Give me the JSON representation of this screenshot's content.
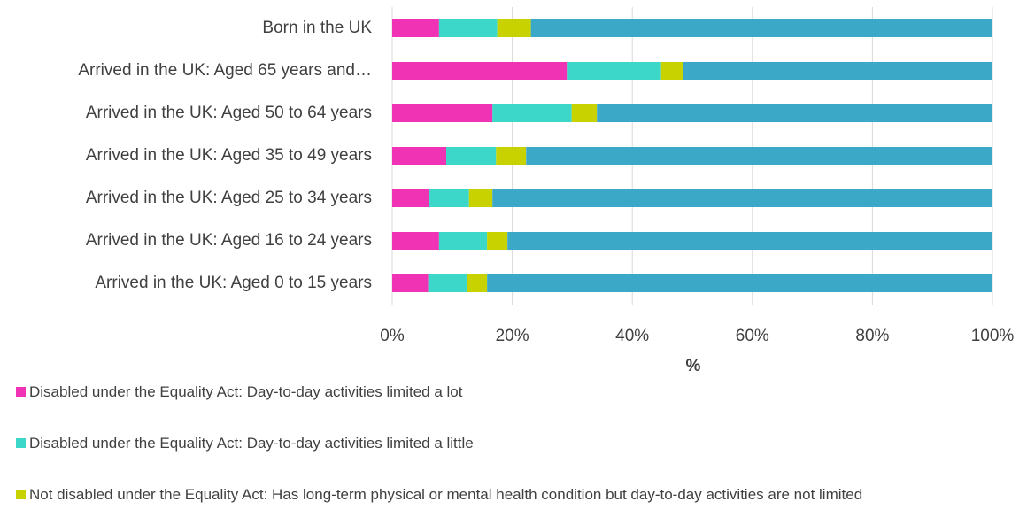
{
  "chart_data": {
    "type": "stacked_barh",
    "categories": [
      "Born in the UK",
      "Arrived in the UK: Aged 65 years and…",
      "Arrived in the UK: Aged 50 to 64 years",
      "Arrived in the UK: Aged 35 to 49 years",
      "Arrived in the UK: Aged 25 to 34 years",
      "Arrived in the UK: Aged 16 to 24 years",
      "Arrived in the UK: Aged 0 to 15 years"
    ],
    "series": [
      {
        "name": "Disabled under the Equality Act: Day-to-day activities limited a lot",
        "color": "#f032b4",
        "values": [
          7.8,
          29.1,
          16.7,
          9.0,
          6.2,
          7.8,
          6.0
        ]
      },
      {
        "name": "Disabled under the Equality Act: Day-to-day activities limited a little",
        "color": "#3cd7c8",
        "values": [
          9.7,
          15.7,
          13.2,
          8.3,
          6.6,
          8.0,
          6.4
        ]
      },
      {
        "name": "Not disabled under the Equality Act: Has long-term physical or mental health condition but day-to-day activities are not limited",
        "color": "#c8d200",
        "values": [
          5.6,
          3.6,
          4.2,
          5.0,
          3.9,
          3.4,
          3.4
        ]
      },
      {
        "name": null,
        "color": "#3ca8c8",
        "values": [
          76.9,
          51.6,
          65.9,
          77.7,
          83.3,
          80.8,
          84.2
        ]
      }
    ],
    "xlabel": "%",
    "xlim": [
      0,
      100
    ],
    "xticks": [
      {
        "value": 0,
        "label": "0%"
      },
      {
        "value": 20,
        "label": "20%"
      },
      {
        "value": 40,
        "label": "40%"
      },
      {
        "value": 60,
        "label": "60%"
      },
      {
        "value": 80,
        "label": "80%"
      },
      {
        "value": 100,
        "label": "100%"
      }
    ],
    "grid": true
  }
}
